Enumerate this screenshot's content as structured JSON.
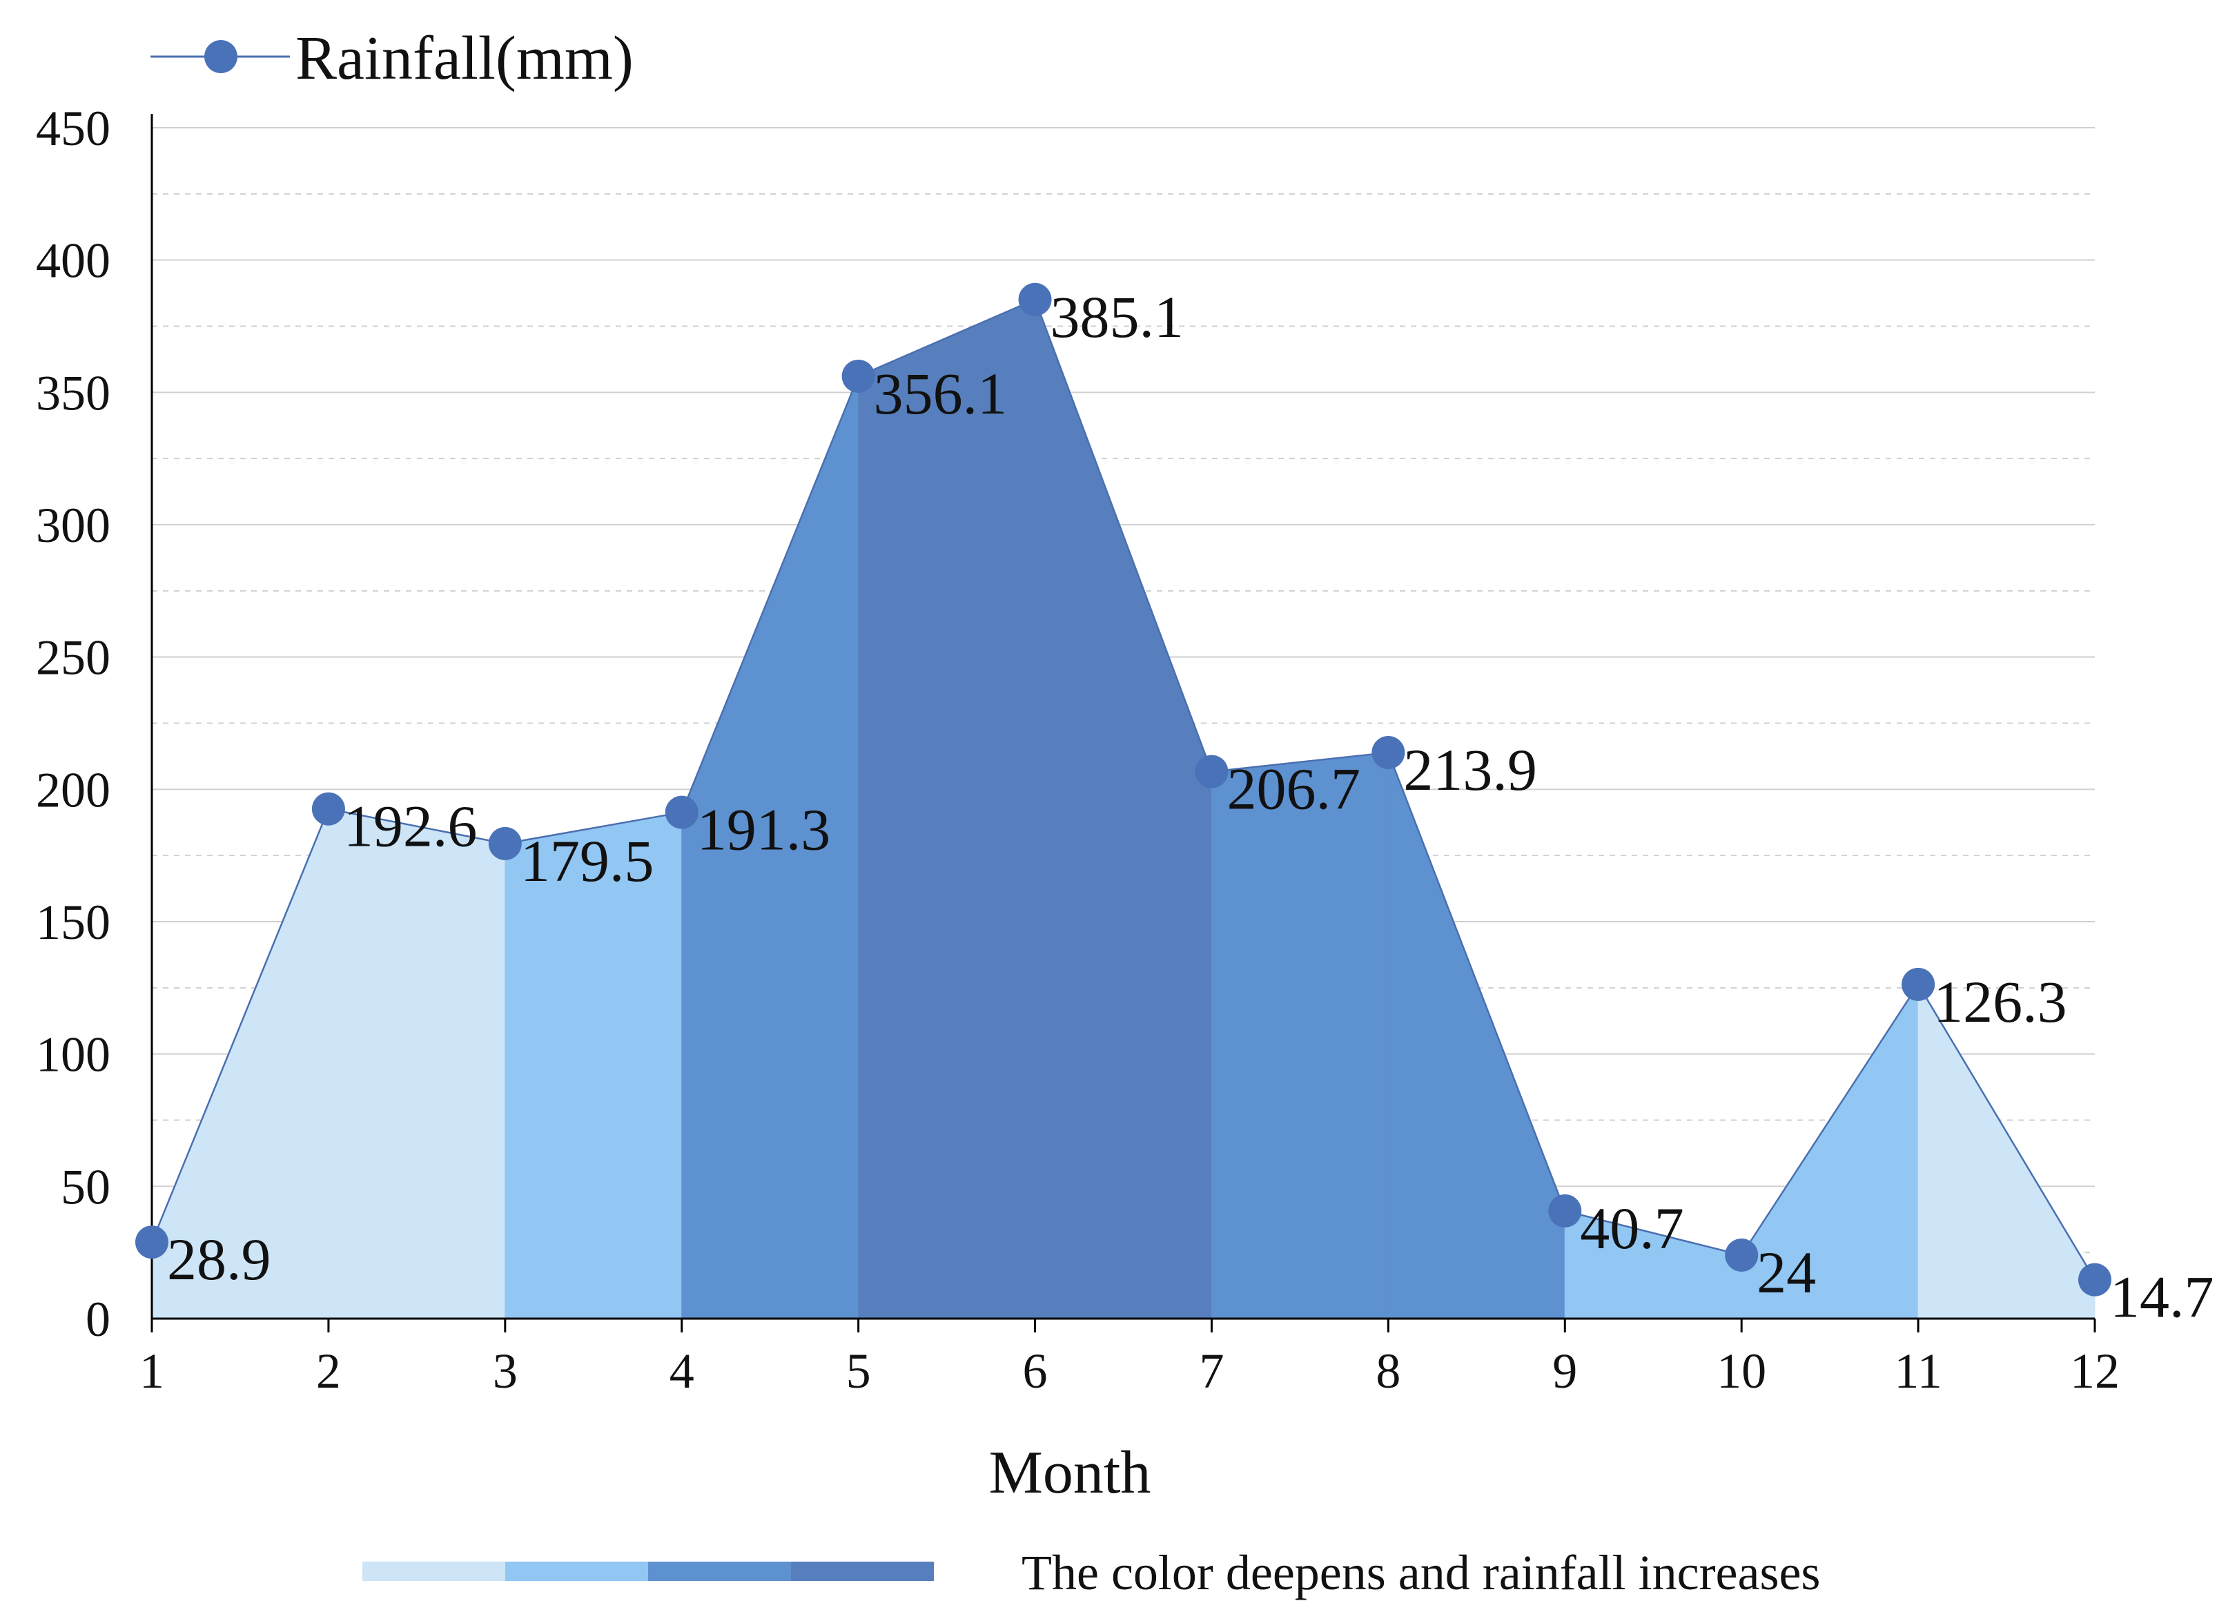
{
  "chart_data": {
    "type": "area",
    "series": [
      {
        "name": "Rainfall(mm)",
        "x": [
          1,
          2,
          3,
          4,
          5,
          6,
          7,
          8,
          9,
          10,
          11,
          12
        ],
        "values": [
          28.9,
          192.6,
          179.5,
          191.3,
          356.1,
          385.1,
          206.7,
          213.9,
          40.7,
          24,
          126.3,
          14.7
        ],
        "data_labels": [
          "28.9",
          "192.6",
          "179.5",
          "191.3",
          "356.1",
          "385.1",
          "206.7",
          "213.9",
          "40.7",
          "24",
          "126.3",
          "14.7"
        ]
      }
    ],
    "segment_shades": [
      0,
      0,
      1,
      2,
      3,
      3,
      2,
      2,
      1,
      1,
      0
    ],
    "shades": [
      "#cde5f7",
      "#92c6f3",
      "#5e91d0",
      "#577fbd"
    ],
    "line_color": "#4a6fb0",
    "marker_color": "#4a72b8",
    "grid_color": "#d0d0d0",
    "xlabel": "Month",
    "ylabel": "",
    "ylim": [
      0,
      450
    ],
    "xlim": [
      1,
      12
    ],
    "yticks": [
      "0",
      "50",
      "100",
      "150",
      "200",
      "250",
      "300",
      "350",
      "400",
      "450"
    ],
    "xticks": [
      "1",
      "2",
      "3",
      "4",
      "5",
      "6",
      "7",
      "8",
      "9",
      "10",
      "11",
      "12"
    ],
    "legend": {
      "label": "Rainfall(mm)",
      "placement": "top-left"
    },
    "color_scale_caption": "The color deepens and rainfall increases"
  }
}
